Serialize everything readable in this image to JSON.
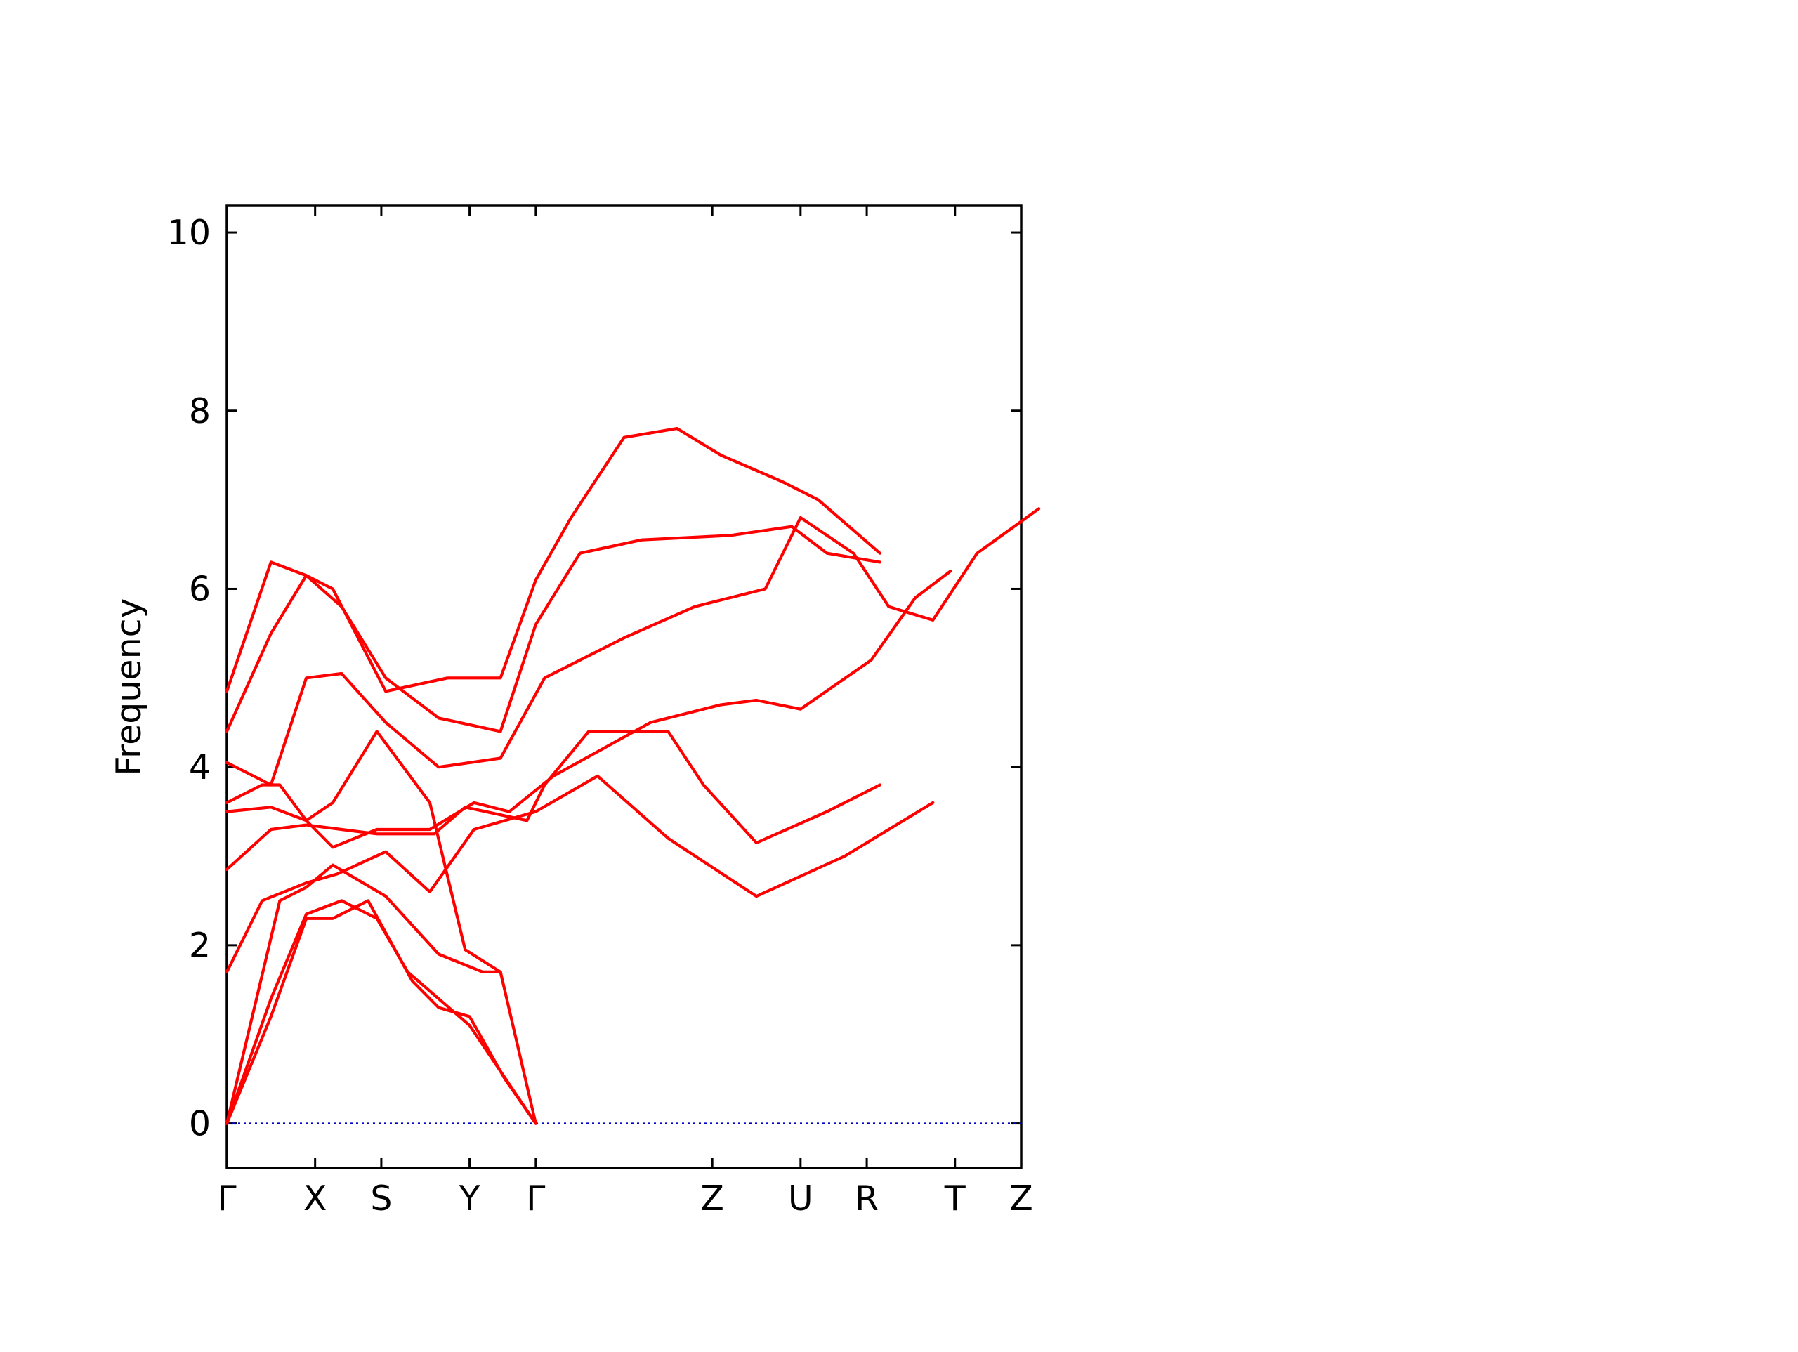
{
  "chart_data": {
    "type": "line",
    "ylabel": "Frequency",
    "ylim": [
      -0.5,
      10.3
    ],
    "yticks": [
      0,
      2,
      4,
      6,
      8,
      10
    ],
    "grid": false,
    "colors": {
      "band": "#ff0000",
      "zero_line": "#0000cc",
      "frame": "#000000"
    },
    "panels": [
      {
        "labels": [
          "Γ",
          "X",
          "S",
          "Y",
          "Γ",
          "Z",
          "U",
          "R",
          "T",
          "Z"
        ],
        "series": [
          {
            "values": [
              [
                0,
                0
              ],
              [
                0.5,
                1.2
              ],
              [
                0.9,
                2.3
              ],
              [
                1.2,
                2.3
              ],
              [
                1.6,
                2.5
              ],
              [
                2.1,
                1.6
              ],
              [
                2.4,
                1.3
              ],
              [
                2.75,
                1.2
              ],
              [
                3.15,
                0.5
              ],
              [
                3.5,
                0
              ]
            ]
          },
          {
            "values": [
              [
                0,
                0
              ],
              [
                0.5,
                1.4
              ],
              [
                0.9,
                2.35
              ],
              [
                1.3,
                2.5
              ],
              [
                1.7,
                2.3
              ],
              [
                2.05,
                1.7
              ],
              [
                2.4,
                1.4
              ],
              [
                2.75,
                1.1
              ],
              [
                3.5,
                0
              ]
            ]
          },
          {
            "values": [
              [
                0,
                0
              ],
              [
                0.6,
                2.5
              ],
              [
                0.9,
                2.65
              ],
              [
                1.2,
                2.9
              ],
              [
                1.8,
                2.55
              ],
              [
                2.4,
                1.9
              ],
              [
                2.9,
                1.7
              ],
              [
                3.1,
                1.7
              ]
            ]
          },
          {
            "values": [
              [
                0,
                1.7
              ],
              [
                0.4,
                2.5
              ],
              [
                0.9,
                2.7
              ],
              [
                1.25,
                2.8
              ],
              [
                1.8,
                3.05
              ],
              [
                2.3,
                2.6
              ],
              [
                2.8,
                3.3
              ],
              [
                3.5,
                3.5
              ],
              [
                4.2,
                3.9
              ],
              [
                5.0,
                3.2
              ],
              [
                6.0,
                2.55
              ],
              [
                7.0,
                3.0
              ],
              [
                8.0,
                3.6
              ]
            ]
          },
          {
            "values": [
              [
                0,
                2.85
              ],
              [
                0.5,
                3.3
              ],
              [
                0.9,
                3.35
              ],
              [
                1.3,
                3.3
              ],
              [
                1.7,
                3.25
              ],
              [
                2.35,
                3.25
              ],
              [
                2.7,
                3.55
              ],
              [
                3.4,
                3.4
              ],
              [
                3.6,
                3.8
              ],
              [
                4.1,
                4.4
              ],
              [
                5.0,
                4.4
              ],
              [
                5.4,
                3.8
              ],
              [
                6.0,
                3.15
              ],
              [
                6.8,
                3.5
              ],
              [
                7.4,
                3.8
              ]
            ]
          },
          {
            "values": [
              [
                0,
                3.5
              ],
              [
                0.5,
                3.55
              ],
              [
                0.9,
                3.4
              ],
              [
                1.2,
                3.1
              ],
              [
                1.7,
                3.3
              ],
              [
                2.3,
                3.3
              ],
              [
                2.8,
                3.6
              ],
              [
                3.2,
                3.5
              ],
              [
                3.7,
                3.9
              ],
              [
                4.8,
                4.5
              ],
              [
                5.6,
                4.7
              ],
              [
                6.0,
                4.75
              ],
              [
                6.5,
                4.65
              ],
              [
                7.3,
                5.2
              ],
              [
                7.8,
                5.9
              ],
              [
                8.2,
                6.2
              ]
            ]
          },
          {
            "values": [
              [
                0,
                3.6
              ],
              [
                0.4,
                3.8
              ],
              [
                0.6,
                3.8
              ],
              [
                0.9,
                3.4
              ],
              [
                1.2,
                3.6
              ],
              [
                1.7,
                4.4
              ],
              [
                2.3,
                3.6
              ],
              [
                2.7,
                1.95
              ],
              [
                3.1,
                1.7
              ],
              [
                3.5,
                0
              ]
            ]
          },
          {
            "values": [
              [
                0,
                4.05
              ],
              [
                0.5,
                3.8
              ],
              [
                0.9,
                5.0
              ],
              [
                1.3,
                5.05
              ],
              [
                1.8,
                4.5
              ],
              [
                2.4,
                4.0
              ],
              [
                3.1,
                4.1
              ],
              [
                3.6,
                5.0
              ],
              [
                4.5,
                5.45
              ],
              [
                5.3,
                5.8
              ],
              [
                6.1,
                6.0
              ],
              [
                6.5,
                6.8
              ],
              [
                7.1,
                6.4
              ],
              [
                7.5,
                5.8
              ],
              [
                8.0,
                5.65
              ],
              [
                8.5,
                6.4
              ],
              [
                9.2,
                6.9
              ]
            ]
          },
          {
            "values": [
              [
                0,
                4.4
              ],
              [
                0.5,
                5.5
              ],
              [
                0.9,
                6.15
              ],
              [
                1.3,
                5.8
              ],
              [
                1.8,
                5.0
              ],
              [
                2.4,
                4.55
              ],
              [
                3.1,
                4.4
              ],
              [
                3.5,
                5.6
              ],
              [
                4.0,
                6.4
              ],
              [
                4.7,
                6.55
              ],
              [
                5.7,
                6.6
              ],
              [
                6.4,
                6.7
              ],
              [
                6.8,
                6.4
              ],
              [
                7.4,
                6.3
              ]
            ]
          },
          {
            "values": [
              [
                0,
                4.85
              ],
              [
                0.5,
                6.3
              ],
              [
                0.9,
                6.15
              ],
              [
                1.2,
                6.0
              ],
              [
                1.8,
                4.85
              ],
              [
                2.5,
                5.0
              ],
              [
                3.1,
                5.0
              ],
              [
                3.5,
                6.1
              ],
              [
                3.9,
                6.8
              ],
              [
                4.5,
                7.7
              ],
              [
                5.1,
                7.8
              ],
              [
                5.6,
                7.5
              ],
              [
                6.3,
                7.2
              ],
              [
                6.7,
                7.0
              ],
              [
                7.4,
                6.4
              ]
            ]
          }
        ]
      }
    ]
  }
}
